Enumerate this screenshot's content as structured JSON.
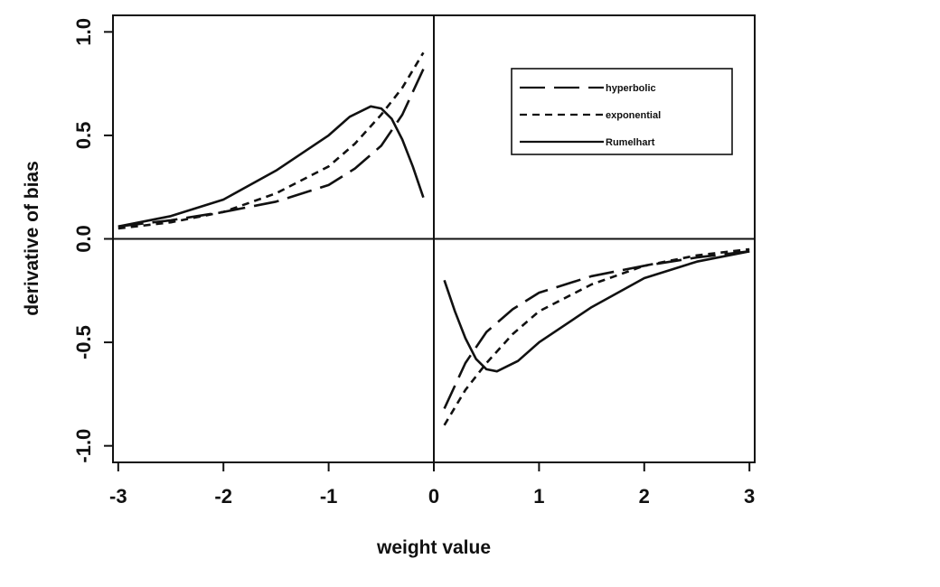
{
  "chart_data": {
    "type": "line",
    "title": "",
    "xlabel": "weight value",
    "ylabel": "derivative of bias",
    "xlim": [
      -3.05,
      3.05
    ],
    "ylim": [
      -1.08,
      1.08
    ],
    "xticks": [
      -3,
      -2,
      -1,
      0,
      1,
      2,
      3
    ],
    "xtick_labels": [
      "-3",
      "-2",
      "-1",
      "0",
      "1",
      "2",
      "3"
    ],
    "yticks": [
      -1.0,
      -0.5,
      0.0,
      0.5,
      1.0
    ],
    "ytick_labels": [
      "-1.0",
      "-0.5",
      "0.0",
      "0.5",
      "1.0"
    ],
    "grid": false,
    "zero_lines": true,
    "legend_position": "top-right",
    "series": [
      {
        "name": "hyperbolic",
        "dash": "long-dash",
        "x": [
          -3.0,
          -2.5,
          -2.0,
          -1.5,
          -1.0,
          -0.75,
          -0.5,
          -0.3,
          -0.1,
          0.1,
          0.3,
          0.5,
          0.75,
          1.0,
          1.5,
          2.0,
          2.5,
          3.0
        ],
        "y": [
          0.06,
          0.09,
          0.13,
          0.18,
          0.26,
          0.34,
          0.45,
          0.6,
          0.82,
          -0.82,
          -0.6,
          -0.45,
          -0.34,
          -0.26,
          -0.18,
          -0.13,
          -0.09,
          -0.06
        ]
      },
      {
        "name": "exponential",
        "dash": "short-dash",
        "x": [
          -3.0,
          -2.5,
          -2.0,
          -1.5,
          -1.0,
          -0.75,
          -0.5,
          -0.3,
          -0.1,
          0.1,
          0.3,
          0.5,
          0.75,
          1.0,
          1.5,
          2.0,
          2.5,
          3.0
        ],
        "y": [
          0.05,
          0.08,
          0.13,
          0.22,
          0.35,
          0.46,
          0.6,
          0.73,
          0.9,
          -0.9,
          -0.73,
          -0.6,
          -0.46,
          -0.35,
          -0.22,
          -0.13,
          -0.08,
          -0.05
        ]
      },
      {
        "name": "Rumelhart",
        "dash": "solid",
        "x": [
          -3.0,
          -2.5,
          -2.0,
          -1.5,
          -1.0,
          -0.8,
          -0.6,
          -0.5,
          -0.4,
          -0.3,
          -0.2,
          -0.1,
          0.1,
          0.2,
          0.3,
          0.4,
          0.5,
          0.6,
          0.8,
          1.0,
          1.5,
          2.0,
          2.5,
          3.0
        ],
        "y": [
          0.06,
          0.11,
          0.19,
          0.33,
          0.5,
          0.59,
          0.64,
          0.63,
          0.58,
          0.48,
          0.35,
          0.2,
          -0.2,
          -0.35,
          -0.48,
          -0.58,
          -0.63,
          -0.64,
          -0.59,
          -0.5,
          -0.33,
          -0.19,
          -0.11,
          -0.06
        ]
      }
    ]
  }
}
